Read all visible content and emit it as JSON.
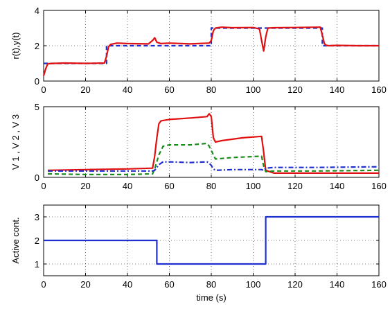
{
  "chart_data": [
    {
      "type": "line",
      "ylabel": "r(t),y(t)",
      "xlabel": "",
      "xlim": [
        0,
        160
      ],
      "ylim": [
        0,
        4
      ],
      "xticks": [
        0,
        20,
        40,
        60,
        80,
        100,
        120,
        140,
        160
      ],
      "yticks": [
        0,
        2,
        4
      ],
      "grid": true,
      "series": [
        {
          "role": "reference",
          "color": "#1f2fcf",
          "style": "dashed",
          "x": [
            0,
            30,
            30,
            80,
            80,
            133,
            133,
            160
          ],
          "y": [
            1.0,
            1.0,
            2.0,
            2.0,
            3.0,
            3.0,
            2.0,
            2.0
          ]
        },
        {
          "role": "output",
          "color": "#e01010",
          "style": "solid",
          "x": [
            0,
            1,
            2,
            5,
            10,
            20,
            29,
            30,
            31,
            32,
            33,
            35,
            40,
            50,
            52,
            53,
            54,
            56,
            60,
            70,
            79,
            80,
            81,
            82,
            85,
            90,
            100,
            103,
            104,
            105,
            106,
            107,
            110,
            120,
            132,
            133,
            134,
            135,
            136,
            140,
            150,
            160
          ],
          "y": [
            0.3,
            0.7,
            0.98,
            1.0,
            1.02,
            1.0,
            1.02,
            1.4,
            1.95,
            2.08,
            2.1,
            2.15,
            2.12,
            2.1,
            2.3,
            2.45,
            2.2,
            2.12,
            2.15,
            2.1,
            2.15,
            2.3,
            2.85,
            3.0,
            3.05,
            3.02,
            3.03,
            2.95,
            2.3,
            1.7,
            2.5,
            3.0,
            3.02,
            3.03,
            3.05,
            2.6,
            2.1,
            2.02,
            2.0,
            2.02,
            2.0,
            2.0
          ]
        }
      ]
    },
    {
      "type": "line",
      "ylabel": "V 1 ,  V 2 ,  V 3",
      "xlabel": "",
      "xlim": [
        0,
        160
      ],
      "ylim": [
        0,
        5
      ],
      "xticks": [
        0,
        20,
        40,
        60,
        80,
        100,
        120,
        140,
        160
      ],
      "yticks": [
        0,
        5
      ],
      "grid": true,
      "series": [
        {
          "role": "V1",
          "color": "#e01010",
          "style": "solid",
          "x": [
            2,
            20,
            40,
            52,
            53,
            54,
            55,
            56,
            60,
            70,
            78,
            79,
            80,
            81,
            82,
            85,
            95,
            104,
            105,
            106,
            110,
            130,
            160
          ],
          "y": [
            0.5,
            0.55,
            0.6,
            0.65,
            1.5,
            2.8,
            3.8,
            4.0,
            4.1,
            4.2,
            4.3,
            4.5,
            4.3,
            2.8,
            2.5,
            2.6,
            2.8,
            2.9,
            1.8,
            0.5,
            0.3,
            0.3,
            0.3
          ]
        },
        {
          "role": "V2",
          "color": "#1a8a1a",
          "style": "dashed",
          "x": [
            2,
            20,
            40,
            52,
            53,
            55,
            57,
            60,
            70,
            78,
            79,
            80,
            81,
            82,
            90,
            104,
            105,
            106,
            110,
            130,
            160
          ],
          "y": [
            0.25,
            0.2,
            0.2,
            0.25,
            0.6,
            1.6,
            2.2,
            2.3,
            2.3,
            2.4,
            2.2,
            1.9,
            1.6,
            1.3,
            1.4,
            1.5,
            0.8,
            0.4,
            0.45,
            0.45,
            0.5
          ]
        },
        {
          "role": "V3",
          "color": "#1f2fcf",
          "style": "dashdot",
          "x": [
            2,
            20,
            40,
            52,
            53,
            55,
            57,
            60,
            70,
            78,
            79,
            80,
            81,
            82,
            90,
            104,
            105,
            106,
            110,
            130,
            160
          ],
          "y": [
            0.45,
            0.45,
            0.45,
            0.45,
            0.5,
            0.9,
            1.1,
            1.1,
            1.05,
            1.1,
            1.0,
            0.85,
            0.6,
            0.5,
            0.55,
            0.55,
            0.5,
            0.65,
            0.7,
            0.7,
            0.75
          ]
        }
      ]
    },
    {
      "type": "line",
      "ylabel": "Active cont.",
      "xlabel": "time (s)",
      "xlim": [
        0,
        160
      ],
      "ylim": [
        0.5,
        3.5
      ],
      "xticks": [
        0,
        20,
        40,
        60,
        80,
        100,
        120,
        140,
        160
      ],
      "yticks": [
        1,
        2,
        3
      ],
      "grid": true,
      "series": [
        {
          "role": "active-controller",
          "color": "#1f2fcf",
          "style": "solid",
          "x": [
            0,
            54,
            54,
            106,
            106,
            160
          ],
          "y": [
            2,
            2,
            1,
            1,
            3,
            3
          ]
        }
      ]
    }
  ]
}
